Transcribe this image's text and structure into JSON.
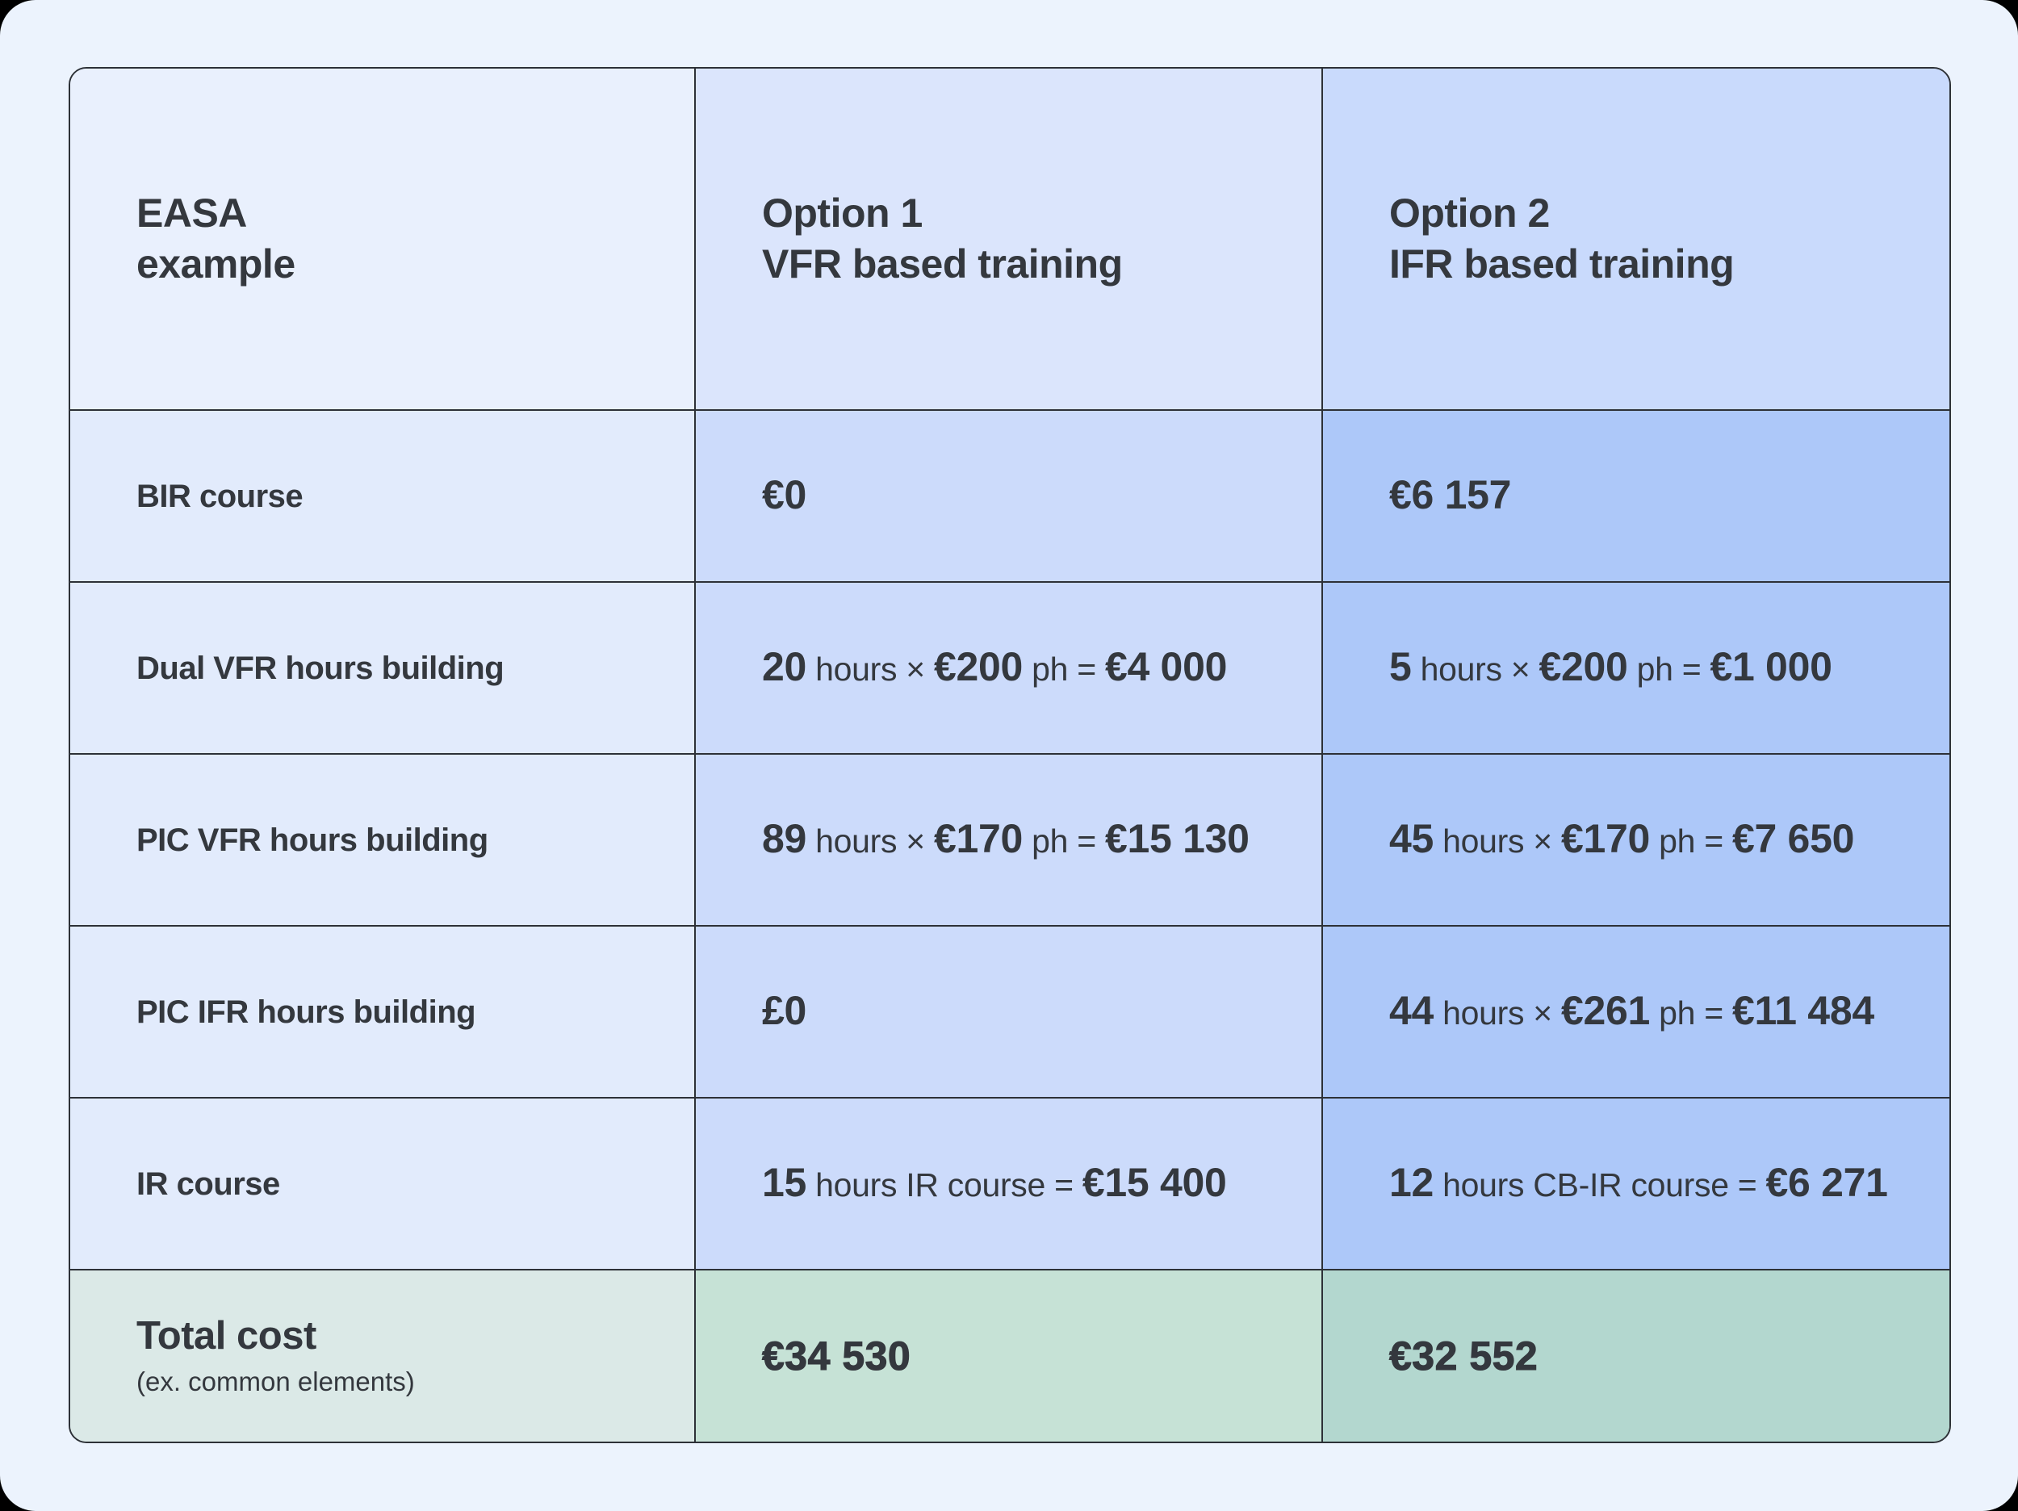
{
  "page": {
    "background": "#ecf3fd"
  },
  "table": {
    "border_color": "#2d3137",
    "text_color": "#34383e",
    "header": {
      "row_label": {
        "line1": "EASA",
        "line2": "example"
      },
      "option1": {
        "line1": "Option 1",
        "line2": "VFR based training"
      },
      "option2": {
        "line1": "Option 2",
        "line2": "IFR based training"
      }
    },
    "rows": [
      {
        "label": "BIR course",
        "option1": "**€0**",
        "option2": "**€6 157**"
      },
      {
        "label": "Dual VFR hours building",
        "option1": "**20** hours × **€200** ph = **€4 000**",
        "option2": "**5** hours × **€200** ph = **€1 000**"
      },
      {
        "label": "PIC VFR hours building",
        "option1": "**89** hours × **€170** ph = **€15 130**",
        "option2": "**45** hours × **€170** ph = **€7 650**"
      },
      {
        "label": "PIC IFR hours building",
        "option1": "**£0**",
        "option2": "**44** hours × **€261** ph = **€11 484**"
      },
      {
        "label": "IR course",
        "option1": "**15** hours IR course = **€15 400**",
        "option2": "**12** hours CB-IR course = **€6 271**"
      }
    ],
    "total": {
      "label": "Total cost",
      "sublabel": "(ex. common elements)",
      "option1": "€34 530",
      "option2": "€32 552"
    },
    "colors": {
      "col1_header": "#e9f0fd",
      "col1_row": "#e2ebfc",
      "col1_total": "#dbe9e7",
      "col2_header": "#dbe5fc",
      "col2_row": "#ccdbfb",
      "col2_total": "#c6e2d6",
      "col3_header": "#c9dafc",
      "col3_row": "#adc8f9",
      "col3_total": "#b3d7cf"
    }
  }
}
